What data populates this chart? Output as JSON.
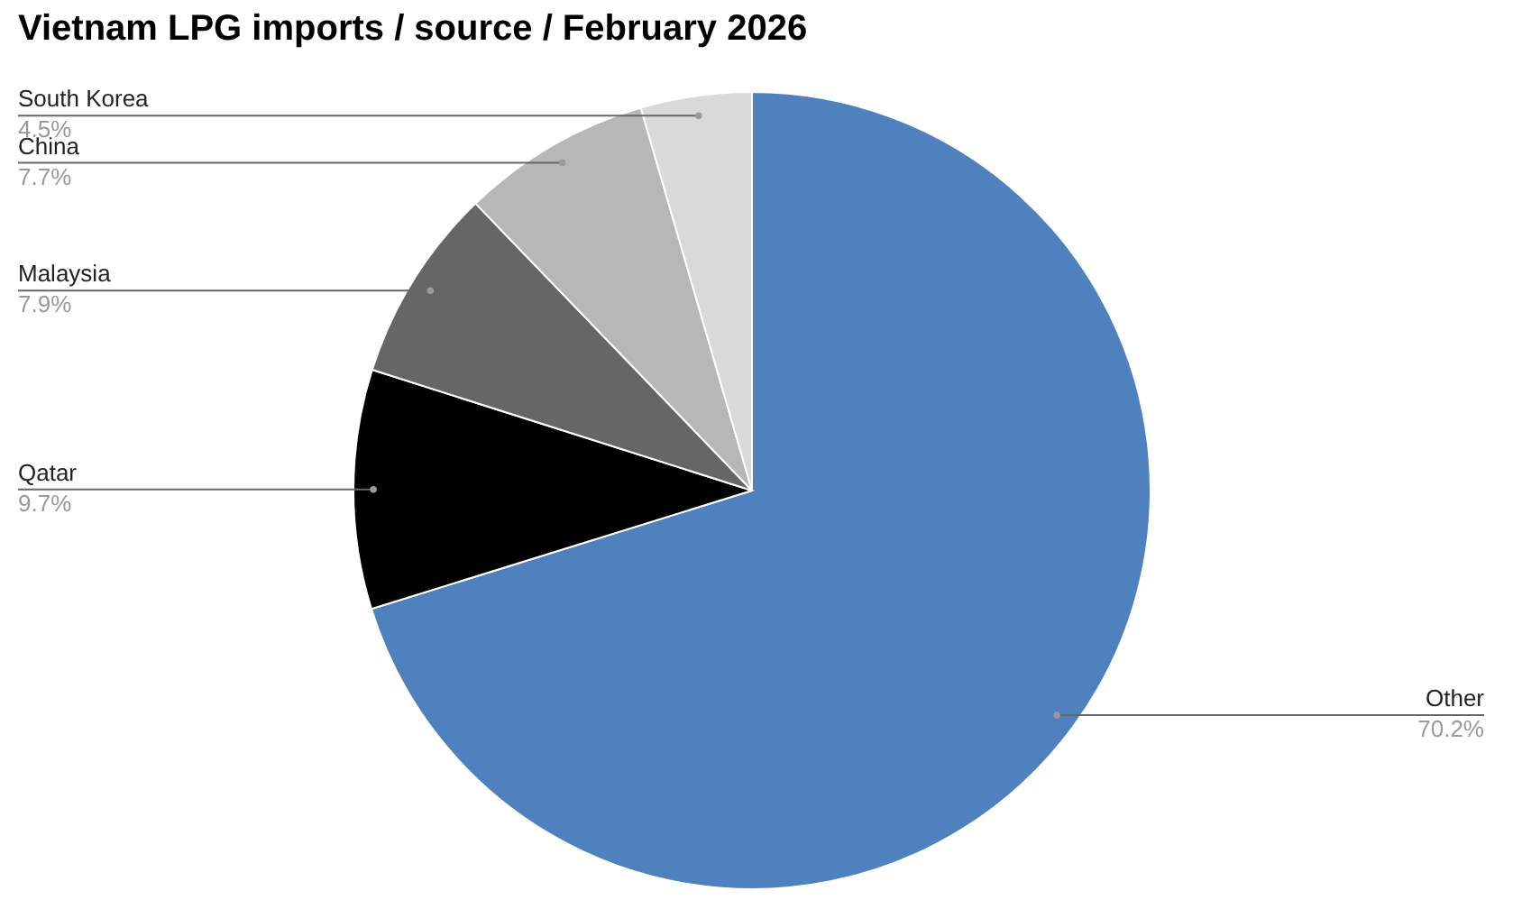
{
  "chart_data": {
    "type": "pie",
    "title": "Vietnam LPG imports / source / February 2026",
    "categories": [
      "Other",
      "Qatar",
      "Malaysia",
      "China",
      "South Korea"
    ],
    "values": [
      70.2,
      9.7,
      7.9,
      7.7,
      4.5
    ],
    "value_labels": [
      "70.2%",
      "9.7%",
      "7.9%",
      "7.7%",
      "4.5%"
    ],
    "colors": [
      "#4e81bd",
      "#000000",
      "#666666",
      "#b7b7b7",
      "#d9d9d9"
    ]
  }
}
